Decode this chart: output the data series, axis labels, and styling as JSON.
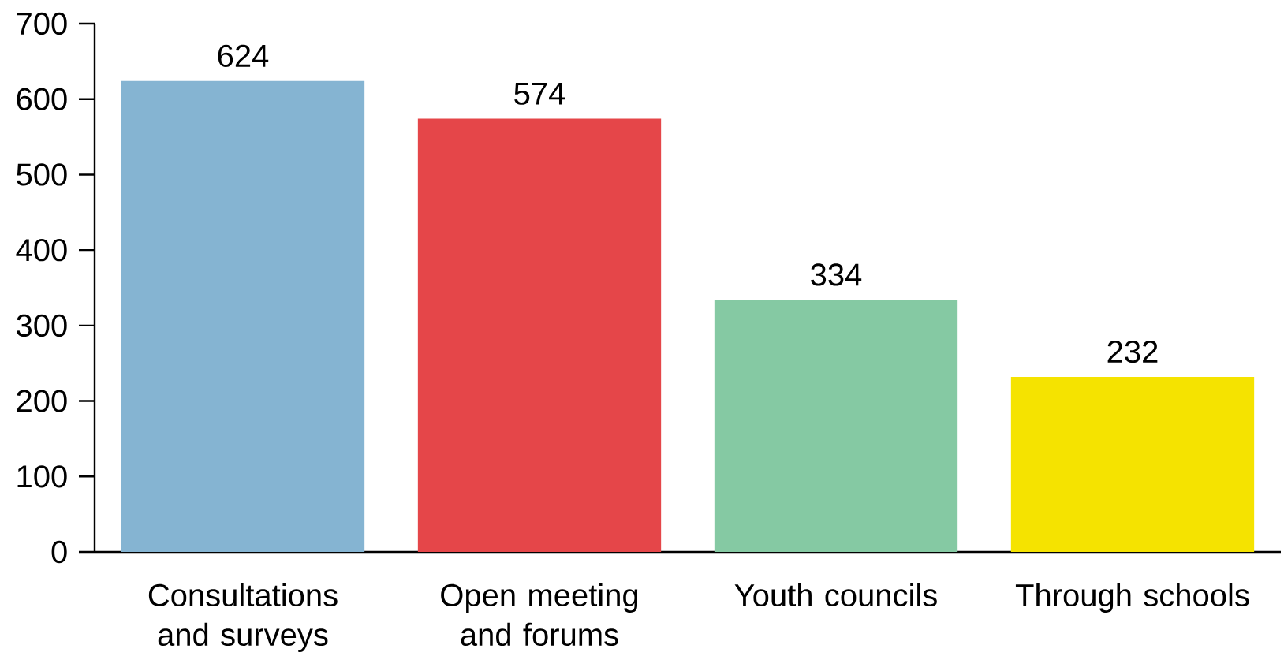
{
  "chart_data": {
    "type": "bar",
    "categories": [
      "Consultations and surveys",
      "Open meeting and forums",
      "Youth councils",
      "Through schools"
    ],
    "values": [
      624,
      574,
      334,
      232
    ],
    "colors": [
      "#85b4d2",
      "#e54649",
      "#85c9a3",
      "#f5e300"
    ],
    "ylim": [
      0,
      700
    ],
    "yticks": [
      0,
      100,
      200,
      300,
      400,
      500,
      600,
      700
    ],
    "data_labels": true
  }
}
